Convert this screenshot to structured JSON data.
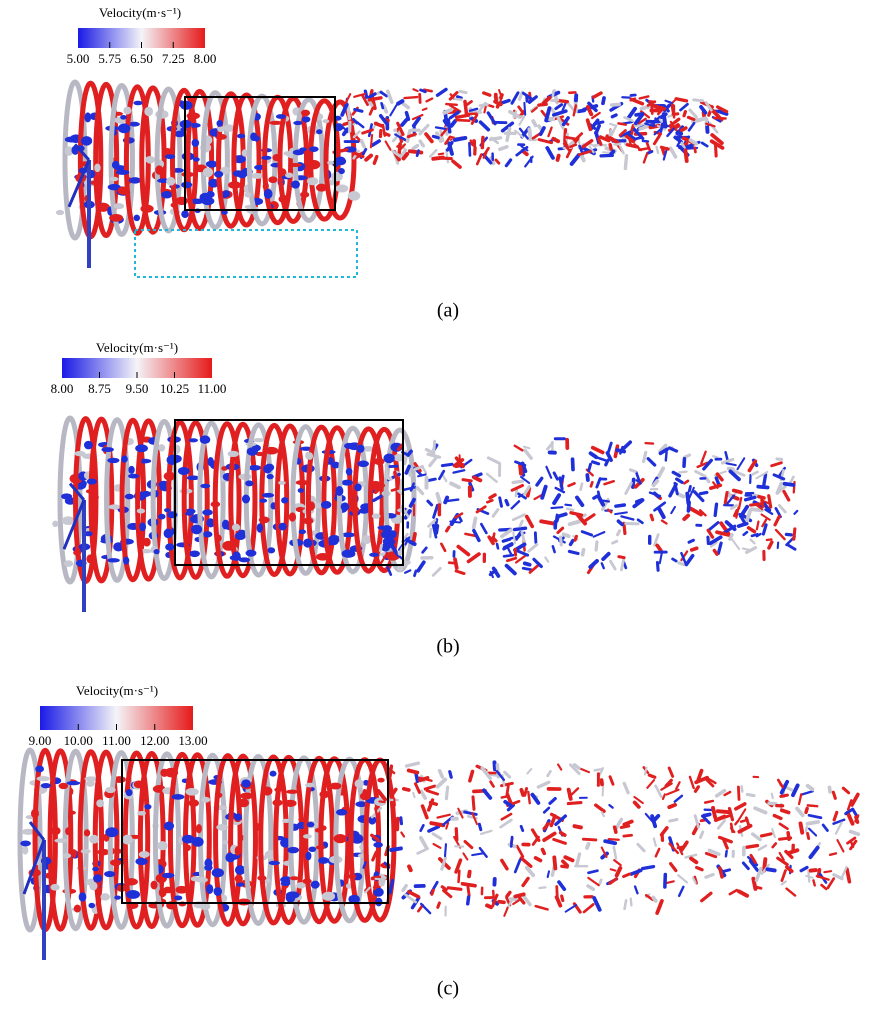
{
  "panels": [
    {
      "colorbar": {
        "title": "Velocity(m·s⁻¹)",
        "ticks": [
          "5.00",
          "5.75",
          "6.50",
          "7.25",
          "8.00"
        ]
      },
      "caption": "(a)"
    },
    {
      "colorbar": {
        "title": "Velocity(m·s⁻¹)",
        "ticks": [
          "8.00",
          "8.75",
          "9.50",
          "10.25",
          "11.00"
        ]
      },
      "caption": "(b)"
    },
    {
      "colorbar": {
        "title": "Velocity(m·s⁻¹)",
        "ticks": [
          "9.00",
          "10.00",
          "11.00",
          "12.00",
          "13.00"
        ]
      },
      "caption": "(c)"
    }
  ]
}
